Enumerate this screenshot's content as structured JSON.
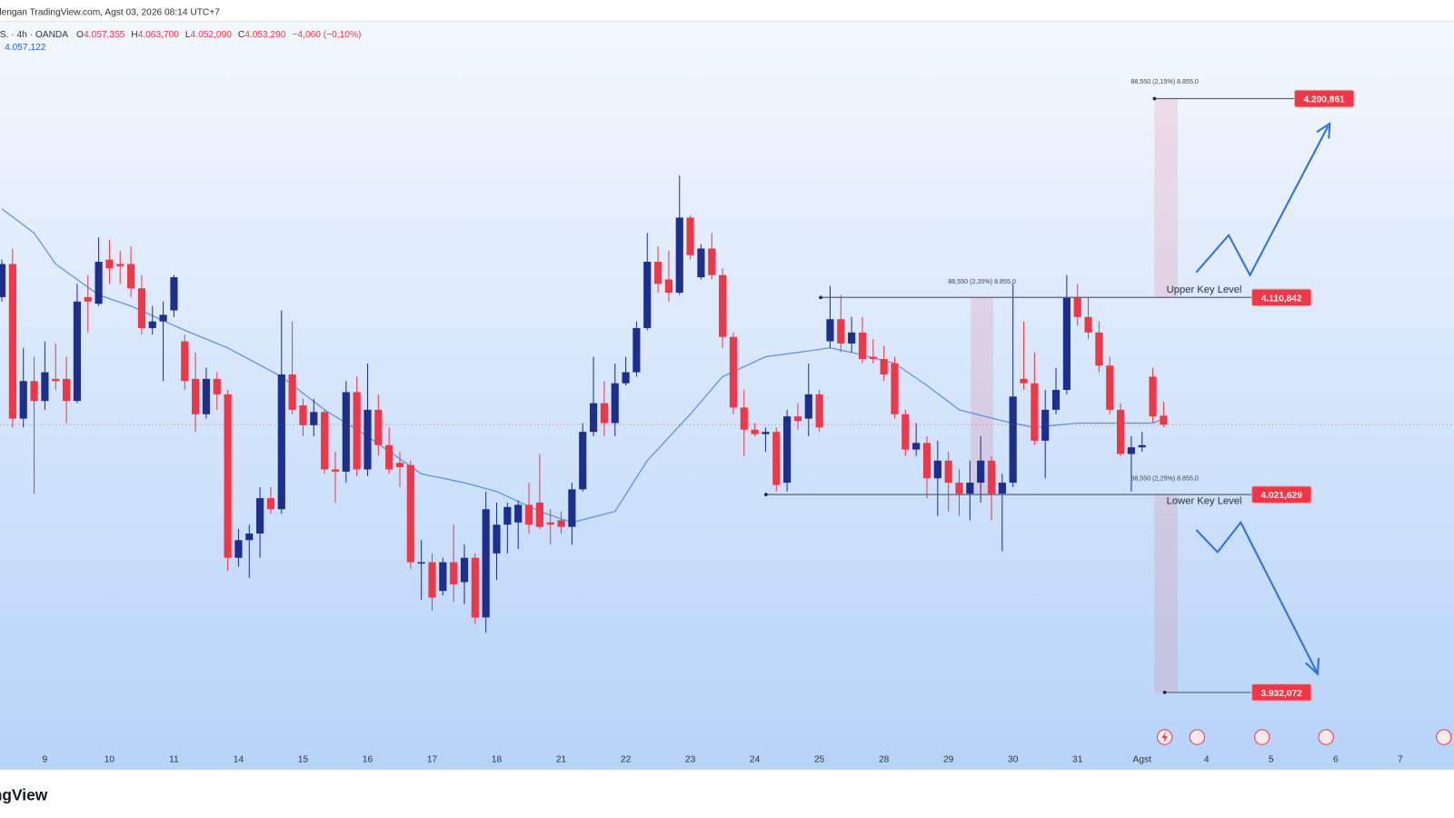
{
  "header": {
    "source": "dengan TradingView.com, Agst 03, 2026 08:14 UTC+7",
    "symbol": ".S. · 4h · OANDA",
    "ohlc": [
      {
        "key": "O",
        "value": "4.057,355"
      },
      {
        "key": "H",
        "value": "4.063,700"
      },
      {
        "key": "L",
        "value": "4.052,090"
      },
      {
        "key": "C",
        "value": "4.053,290"
      }
    ],
    "change": "−4,060 (−0,10%)",
    "ma_value": "4.057,122"
  },
  "chart_data": {
    "type": "candlestick",
    "categories": [
      null,
      null,
      null,
      null,
      "9",
      null,
      null,
      null,
      null,
      null,
      "10",
      null,
      null,
      null,
      null,
      null,
      "11",
      null,
      null,
      null,
      null,
      null,
      "14",
      null,
      null,
      null,
      null,
      null,
      "15",
      null,
      null,
      null,
      null,
      null,
      "16",
      null,
      null,
      null,
      null,
      null,
      "17",
      null,
      null,
      null,
      null,
      null,
      "18",
      null,
      null,
      null,
      null,
      null,
      "21",
      null,
      null,
      null,
      null,
      null,
      "22",
      null,
      null,
      null,
      null,
      null,
      "23",
      null,
      null,
      null,
      null,
      null,
      "24",
      null,
      null,
      null,
      null,
      null,
      "25",
      null,
      null,
      null,
      null,
      null,
      "28",
      null,
      null,
      null,
      null,
      null,
      "29",
      null,
      null,
      null,
      null,
      null,
      "30",
      null,
      null,
      null,
      null,
      null,
      "31",
      null,
      null,
      null,
      null,
      null,
      "Agst",
      null,
      null,
      null,
      null,
      null,
      "4",
      null,
      null,
      null,
      null,
      null,
      "5",
      null,
      null,
      null,
      null,
      null,
      "6",
      null,
      null,
      null,
      null,
      null,
      "7",
      null,
      null,
      null,
      null
    ],
    "open": [
      4111,
      4126,
      4056,
      4073,
      4064,
      4074,
      4074,
      4064,
      4111,
      4108,
      4128,
      4126,
      4126,
      4115,
      4097,
      4100,
      4105,
      4091,
      4074,
      4058,
      4074,
      4067,
      3993,
      4001,
      4004,
      4020,
      4015,
      4076,
      4062,
      4053,
      4059,
      4033,
      4032,
      4068,
      4033,
      4060,
      4044,
      4036,
      4035,
      3991,
      3991,
      3978,
      3991,
      3982,
      3993,
      3966,
      3995,
      4008,
      4009,
      4017,
      4018,
      4009,
      4010,
      4007,
      4024,
      4050,
      4063,
      4054,
      4072,
      4077,
      4097,
      4127,
      4119,
      4113,
      4147,
      4120,
      4133,
      4121,
      4093,
      4061,
      4051,
      4049,
      4050,
      4027,
      4057,
      4056,
      4067,
      4091,
      4101,
      4090,
      4095,
      4084,
      4083,
      4081,
      4058,
      4042,
      4045,
      4029,
      4037,
      4027,
      4022,
      4027,
      4037,
      4022,
      4027,
      4074,
      4072,
      4046,
      4060,
      4069,
      4111,
      4102,
      4095,
      4080,
      4060,
      4040,
      4043,
      4075,
      4057.355,
      null,
      null,
      null,
      null,
      null,
      null,
      null,
      null,
      null,
      null,
      null,
      null,
      null,
      null,
      null,
      null,
      null,
      null,
      null,
      null,
      null,
      null,
      null,
      null,
      null,
      null
    ],
    "high": [
      4128,
      4133,
      4088,
      4084,
      4091,
      4090,
      4084,
      4117,
      4121,
      4138,
      4137,
      4132,
      4134,
      4121,
      4107,
      4109,
      4121,
      4094,
      4086,
      4079,
      4077,
      4069,
      4006,
      4008,
      4025,
      4025,
      4105,
      4100,
      4065,
      4065,
      4060,
      4041,
      4073,
      4075,
      4081,
      4067,
      4052,
      4041,
      4037,
      4001,
      3995,
      3993,
      4008,
      3999,
      3995,
      4023,
      4018,
      4018,
      4019,
      4027,
      4040,
      4015,
      4014,
      4027,
      4054,
      4084,
      4073,
      4081,
      4084,
      4100,
      4140,
      4134,
      4132,
      4166,
      4148,
      4135,
      4140,
      4124,
      4095,
      4069,
      4054,
      4052,
      4052,
      4060,
      4063,
      4081,
      4069,
      4116,
      4112,
      4102,
      4102,
      4092,
      4089,
      4084,
      4060,
      4054,
      4048,
      4046,
      4041,
      4033,
      4037,
      4048,
      4039,
      4031,
      4117,
      4100,
      4086,
      4069,
      4079,
      4121,
      4117,
      4111,
      4100,
      4084,
      4063,
      4048,
      4050,
      4079,
      4063.7,
      null,
      null,
      null,
      null,
      null,
      null,
      null,
      null,
      null,
      null,
      null,
      null,
      null,
      null,
      null,
      null,
      null,
      null,
      null,
      null,
      null,
      null,
      null,
      null,
      null,
      null
    ],
    "low": [
      4109,
      4052,
      4052,
      4022,
      4060,
      4069,
      4054,
      4063,
      4095,
      4107,
      4117,
      4117,
      4111,
      4094,
      4094,
      4073,
      4102,
      4069,
      4050,
      4056,
      4060,
      3987,
      3989,
      3984,
      3993,
      4013,
      4013,
      4058,
      4048,
      4048,
      4031,
      4018,
      4027,
      4030,
      4030,
      4039,
      4031,
      4025,
      3988,
      3974,
      3969,
      3976,
      3973,
      3972,
      3963,
      3959,
      3983,
      3995,
      3997,
      4004,
      4006,
      3999,
      4004,
      3999,
      4023,
      4048,
      4048,
      4048,
      4071,
      4075,
      4096,
      4113,
      4109,
      4112,
      4128,
      4119,
      4119,
      4088,
      4058,
      4039,
      4048,
      4041,
      4023,
      4023,
      4051,
      4048,
      4050,
      4088,
      4086,
      4086,
      4081,
      4081,
      4073,
      4056,
      4039,
      4039,
      4020,
      4012,
      4014,
      4012,
      4010,
      4018,
      4010,
      3996,
      4025,
      4069,
      4044,
      4029,
      4058,
      4067,
      4098,
      4092,
      4077,
      4058,
      4039,
      4023,
      4041,
      4054,
      4052.09,
      null,
      null,
      null,
      null,
      null,
      null,
      null,
      null,
      null,
      null,
      null,
      null,
      null,
      null,
      null,
      null,
      null,
      null,
      null,
      null,
      null,
      null,
      null,
      null,
      null,
      null
    ],
    "close": [
      4126,
      4056,
      4073,
      4064,
      4077,
      4073,
      4064,
      4109,
      4109,
      4127,
      4124,
      4125,
      4115,
      4097,
      4100,
      4103,
      4120,
      4073,
      4058,
      4074,
      4067,
      3993,
      4001,
      4004,
      4020,
      4015,
      4076,
      4060,
      4053,
      4059,
      4033,
      4032,
      4068,
      4033,
      4060,
      4044,
      4033,
      4034,
      3991,
      3991,
      3975,
      3991,
      3981,
      3993,
      3966,
      4015,
      4008,
      4016,
      4017,
      4008,
      4007,
      4008,
      4007,
      4024,
      4050,
      4063,
      4054,
      4072,
      4077,
      4097,
      4127,
      4117,
      4113,
      4147,
      4130,
      4133,
      4121,
      4093,
      4061,
      4051,
      4049,
      4050,
      4026,
      4057,
      4055,
      4067,
      4052,
      4101,
      4090,
      4095,
      4083,
      4083,
      4076,
      4058,
      4042,
      4045,
      4029,
      4037,
      4027,
      4022,
      4027,
      4037,
      4022,
      4027,
      4066,
      4072,
      4046,
      4060,
      4069,
      4111,
      4102,
      4095,
      4080,
      4060,
      4040,
      4043,
      4044,
      4057,
      4053.29,
      null,
      null,
      null,
      null,
      null,
      null,
      null,
      null,
      null,
      null,
      null,
      null,
      null,
      null,
      null,
      null,
      null,
      null,
      null,
      null,
      null,
      null,
      null,
      null,
      null,
      null
    ],
    "up_color": "#1c2e8f",
    "down_color": "#f23645",
    "ylim": [
      3897.1,
      4245.5
    ],
    "ma": {
      "color": "#5d8fe6",
      "x": [
        0,
        3,
        5,
        9,
        12,
        17,
        21,
        26,
        30,
        34,
        39,
        43,
        46,
        50,
        53,
        57,
        60,
        64,
        67,
        71,
        74,
        77,
        79,
        83,
        86,
        89,
        93,
        96,
        100,
        103,
        107,
        108
      ],
      "values": [
        4151,
        4140,
        4126,
        4112,
        4107,
        4096,
        4088,
        4075,
        4060,
        4048,
        4031,
        4027,
        4023,
        4014,
        4009,
        4014,
        4037,
        4058,
        4075,
        4084,
        4086,
        4088,
        4086,
        4081,
        4071,
        4060,
        4055,
        4052,
        4054,
        4054,
        4054,
        4056
      ]
    },
    "levels": [
      {
        "name": "Upper Key Level",
        "value": 4110.842,
        "value_label": "4.110,842"
      },
      {
        "name": "Lower Key Level",
        "value": 4021.629,
        "value_label": "4.021,629"
      }
    ],
    "targets": [
      {
        "value": 4200.861,
        "value_label": "4.200,861"
      },
      {
        "value": 3932.072,
        "value_label": "3.932,072"
      }
    ],
    "measures": [
      "88,550 (2,15%) 8.855,0",
      "88,550 (2,20%) 8.855,0",
      "88,550 (2,25%) 8.855,0"
    ]
  },
  "logo": "ngView"
}
